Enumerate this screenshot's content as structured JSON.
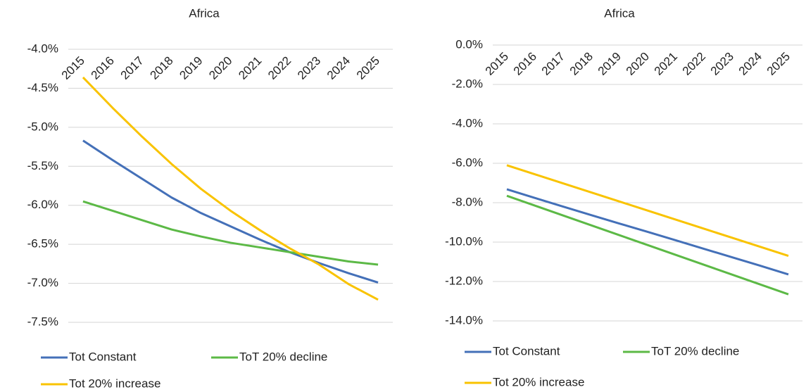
{
  "chart_data": [
    {
      "type": "line",
      "title": "Africa",
      "categories": [
        "2015",
        "2016",
        "2017",
        "2018",
        "2019",
        "2020",
        "2021",
        "2022",
        "2023",
        "2024",
        "2025"
      ],
      "series": [
        {
          "name": "Tot Constant",
          "color": "#4470b8",
          "values": [
            -5.17,
            -5.42,
            -5.66,
            -5.9,
            -6.1,
            -6.27,
            -6.44,
            -6.6,
            -6.74,
            -6.87,
            -6.99
          ]
        },
        {
          "name": "ToT 20% decline",
          "color": "#5cb946",
          "values": [
            -5.95,
            -6.07,
            -6.19,
            -6.31,
            -6.4,
            -6.48,
            -6.54,
            -6.6,
            -6.66,
            -6.72,
            -6.76
          ]
        },
        {
          "name": "Tot 20% increase",
          "color": "#f9c300",
          "values": [
            -4.36,
            -4.75,
            -5.12,
            -5.47,
            -5.79,
            -6.07,
            -6.32,
            -6.55,
            -6.76,
            -7.01,
            -7.21
          ]
        }
      ],
      "ylim": [
        -7.5,
        -4.0
      ],
      "yticks": [
        {
          "value": -4.0,
          "label": "-4.0%"
        },
        {
          "value": -4.5,
          "label": "-4.5%"
        },
        {
          "value": -5.0,
          "label": "-5.0%"
        },
        {
          "value": -5.5,
          "label": "-5.5%"
        },
        {
          "value": -6.0,
          "label": "-6.0%"
        },
        {
          "value": -6.5,
          "label": "-6.5%"
        },
        {
          "value": -7.0,
          "label": "-7.0%"
        },
        {
          "value": -7.5,
          "label": "-7.5%"
        }
      ],
      "grid": true
    },
    {
      "type": "line",
      "title": "Africa",
      "categories": [
        "2015",
        "2016",
        "2017",
        "2018",
        "2019",
        "2020",
        "2021",
        "2022",
        "2023",
        "2024",
        "2025"
      ],
      "series": [
        {
          "name": "Tot Constant",
          "color": "#4470b8",
          "values": [
            -7.32,
            -7.76,
            -8.2,
            -8.63,
            -9.06,
            -9.48,
            -9.91,
            -10.34,
            -10.77,
            -11.2,
            -11.64
          ]
        },
        {
          "name": "ToT 20% decline",
          "color": "#5cb946",
          "values": [
            -7.65,
            -8.15,
            -8.65,
            -9.15,
            -9.65,
            -10.15,
            -10.65,
            -11.15,
            -11.65,
            -12.15,
            -12.65
          ]
        },
        {
          "name": "Tot 20% increase",
          "color": "#f9c300",
          "values": [
            -6.1,
            -6.56,
            -7.02,
            -7.48,
            -7.94,
            -8.4,
            -8.86,
            -9.32,
            -9.78,
            -10.24,
            -10.7
          ]
        }
      ],
      "ylim": [
        -14.0,
        0.0
      ],
      "yticks": [
        {
          "value": 0.0,
          "label": "0.0%"
        },
        {
          "value": -2.0,
          "label": "-2.0%"
        },
        {
          "value": -4.0,
          "label": "-4.0%"
        },
        {
          "value": -6.0,
          "label": "-6.0%"
        },
        {
          "value": -8.0,
          "label": "-8.0%"
        },
        {
          "value": -10.0,
          "label": "-10.0%"
        },
        {
          "value": -12.0,
          "label": "-12.0%"
        },
        {
          "value": -14.0,
          "label": "-14.0%"
        }
      ],
      "grid": true
    }
  ]
}
